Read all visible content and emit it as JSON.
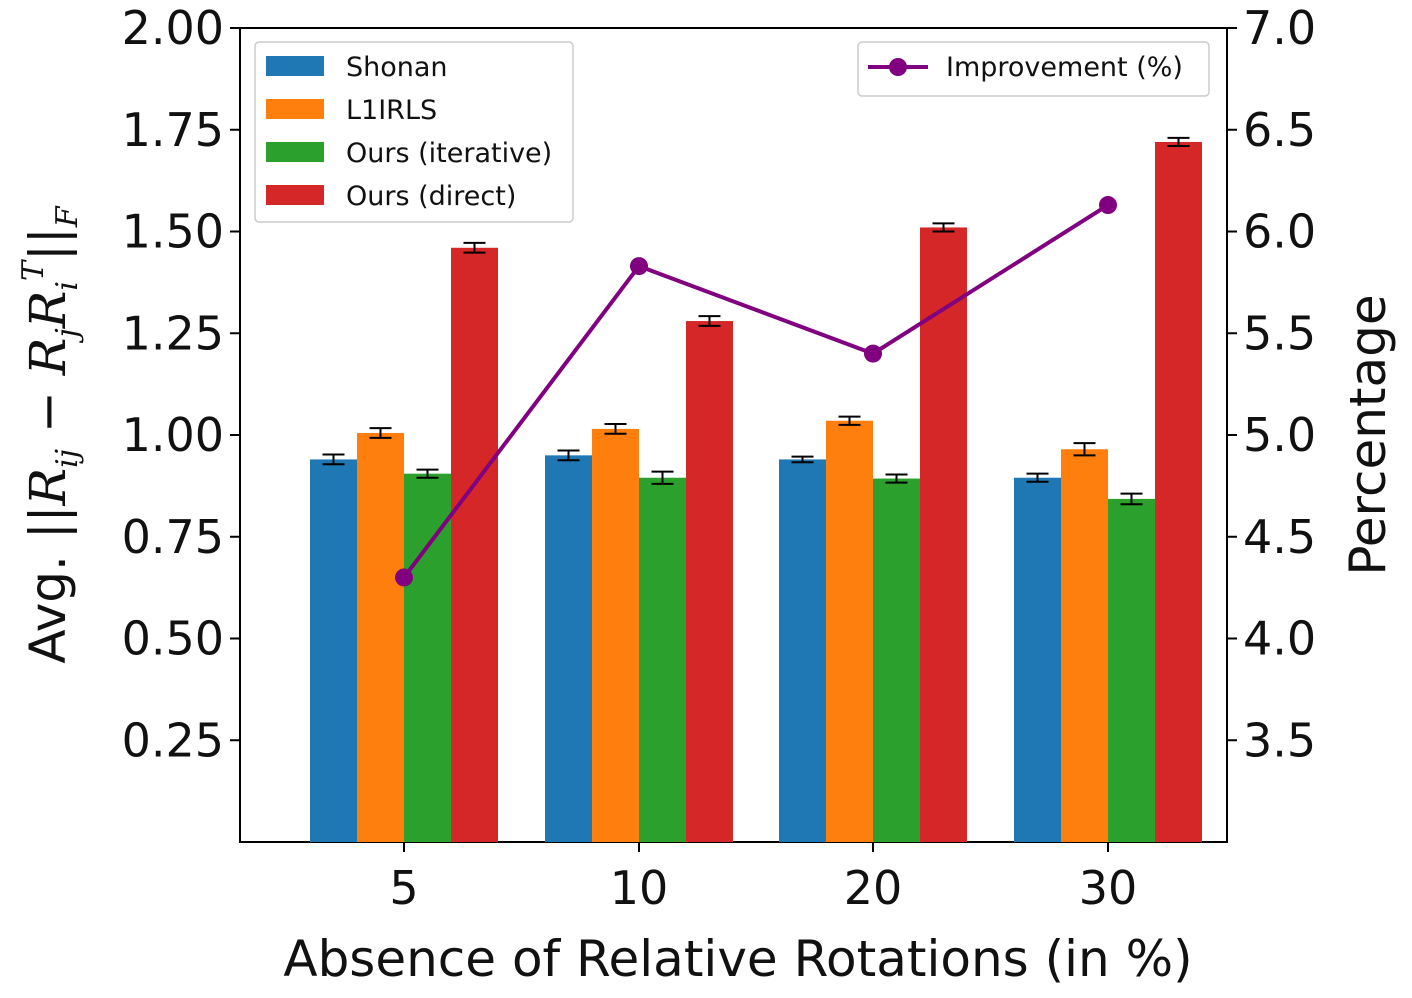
{
  "chart_data": {
    "type": "bar",
    "categories": [
      "5",
      "10",
      "20",
      "30"
    ],
    "xlabel": "Absence of Relative Rotations (in %)",
    "ylabel": "Avg. ||R_ij − R_j R_i^T||_F",
    "ylabel_parts": {
      "prefix": "Avg. ||",
      "r1": "R",
      "r1_sub": "ij",
      "minus": " − ",
      "r2": "R",
      "r2_sub": "j",
      "r3": "R",
      "r3_sub": "i",
      "r3_sup": "T",
      "suffix": "||",
      "suffix_sub": "F"
    },
    "ylim": [
      0.0,
      2.0
    ],
    "yticks": [
      "0.25",
      "0.50",
      "0.75",
      "1.00",
      "1.25",
      "1.50",
      "1.75",
      "2.00"
    ],
    "y2label": "Percentage",
    "y2lim": [
      3.0,
      7.0
    ],
    "y2ticks": [
      "3.5",
      "4.0",
      "4.5",
      "5.0",
      "5.5",
      "6.0",
      "6.5",
      "7.0"
    ],
    "series": [
      {
        "name": "Shonan",
        "color": "#1f77b4",
        "values": [
          0.94,
          0.95,
          0.94,
          0.895
        ],
        "errors": [
          0.012,
          0.012,
          0.007,
          0.01
        ]
      },
      {
        "name": "L1IRLS",
        "color": "#ff7f0e",
        "values": [
          1.005,
          1.015,
          1.035,
          0.965
        ],
        "errors": [
          0.012,
          0.012,
          0.01,
          0.015
        ]
      },
      {
        "name": "Ours (iterative)",
        "color": "#2ca02c",
        "values": [
          0.905,
          0.895,
          0.893,
          0.843
        ],
        "errors": [
          0.01,
          0.015,
          0.01,
          0.013
        ]
      },
      {
        "name": "Ours (direct)",
        "color": "#d62728",
        "values": [
          1.46,
          1.28,
          1.51,
          1.72
        ],
        "errors": [
          0.012,
          0.012,
          0.01,
          0.01
        ]
      }
    ],
    "line_series": {
      "name": "Improvement (%)",
      "color": "#800080",
      "axis": "right",
      "values": [
        4.3,
        5.83,
        5.4,
        6.13
      ]
    },
    "legend_left_position": "upper-left",
    "legend_right_position": "upper-right",
    "grid": false
  }
}
